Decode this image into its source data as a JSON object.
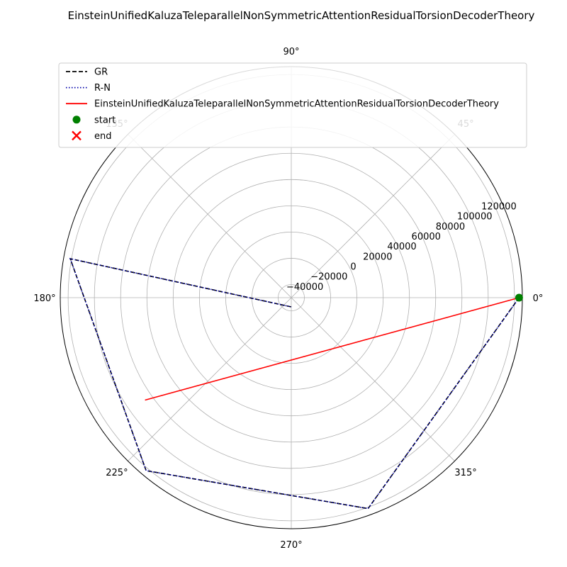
{
  "chart_data": {
    "type": "polar-line",
    "title": "EinsteinUnifiedKaluzaTeleparallelNonSymmetricAttentionResidualTorsionDecoderTheory",
    "theta_unit": "degrees",
    "r_range": [
      -50000,
      126000
    ],
    "angle_ticks": [
      {
        "deg": 0,
        "label": "0°"
      },
      {
        "deg": 45,
        "label": "45°"
      },
      {
        "deg": 90,
        "label": "90°"
      },
      {
        "deg": 135,
        "label": "135°"
      },
      {
        "deg": 180,
        "label": "180°"
      },
      {
        "deg": 225,
        "label": "225°"
      },
      {
        "deg": 270,
        "label": "270°"
      },
      {
        "deg": 315,
        "label": "315°"
      }
    ],
    "radial_ticks": [
      {
        "value": -40000,
        "label": "−40000"
      },
      {
        "value": -20000,
        "label": "−20000"
      },
      {
        "value": 0,
        "label": "0"
      },
      {
        "value": 20000,
        "label": "20000"
      },
      {
        "value": 40000,
        "label": "40000"
      },
      {
        "value": 60000,
        "label": "60000"
      },
      {
        "value": 80000,
        "label": "80000"
      },
      {
        "value": 100000,
        "label": "100000"
      },
      {
        "value": 120000,
        "label": "120000"
      }
    ],
    "radial_label_angle_deg": 22.5,
    "series": [
      {
        "name": "GR",
        "color": "#000000",
        "style": "dashed",
        "theta": [
          0,
          290,
          230,
          170,
          270
        ],
        "r": [
          123500,
          121000,
          122000,
          121000,
          -43000
        ]
      },
      {
        "name": "R-N",
        "color": "#0000aa",
        "style": "dotted",
        "theta": [
          0,
          290,
          230,
          170,
          270
        ],
        "r": [
          123500,
          121000,
          122000,
          121000,
          -43000
        ]
      },
      {
        "name": "EinsteinUnifiedKaluzaTeleparallelNonSymmetricAttentionResidualTorsionDecoderTheory",
        "color": "#ff0000",
        "style": "solid",
        "theta": [
          0,
          215
        ],
        "r": [
          123500,
          86000
        ]
      }
    ],
    "markers": [
      {
        "name": "start",
        "color": "#008000",
        "shape": "circle",
        "theta": 0,
        "r": 123500
      },
      {
        "name": "end",
        "color": "#ff0000",
        "shape": "x"
      }
    ],
    "legend_position": "upper-left"
  }
}
